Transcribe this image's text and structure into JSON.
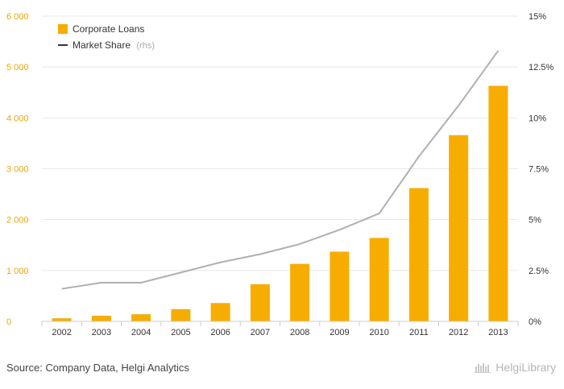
{
  "chart_data": {
    "type": "bar",
    "categories": [
      "2002",
      "2003",
      "2004",
      "2005",
      "2006",
      "2007",
      "2008",
      "2009",
      "2010",
      "2011",
      "2012",
      "2013"
    ],
    "series": [
      {
        "name": "Corporate Loans",
        "kind": "bar",
        "axis": "left",
        "color": "#f7ad00",
        "values": [
          60,
          110,
          140,
          240,
          360,
          730,
          1130,
          1370,
          1640,
          2620,
          3660,
          4630
        ]
      },
      {
        "name": "Market Share",
        "name_suffix": "(rhs)",
        "kind": "line",
        "axis": "right",
        "color": "#b0b0b0",
        "values": [
          1.6,
          1.9,
          1.9,
          2.4,
          2.9,
          3.3,
          3.8,
          4.5,
          5.3,
          8.1,
          10.6,
          13.3
        ]
      }
    ],
    "y_left": {
      "lim": [
        0,
        6000
      ],
      "ticks": [
        0,
        1000,
        2000,
        3000,
        4000,
        5000,
        6000
      ],
      "tick_labels": [
        "0",
        "1 000",
        "2 000",
        "3 000",
        "4 000",
        "5 000",
        "6 000"
      ]
    },
    "y_right": {
      "lim": [
        0,
        15
      ],
      "ticks": [
        0,
        2.5,
        5,
        7.5,
        10,
        12.5,
        15
      ],
      "tick_labels": [
        "0%",
        "2.5%",
        "5%",
        "7.5%",
        "10%",
        "12.5%",
        "15%"
      ]
    },
    "grid": true,
    "legend": "top-left"
  },
  "footer": {
    "source": "Source: Company Data, Helgi Analytics",
    "brand": "HelgiLibrary"
  },
  "colors": {
    "bar": "#f7ad00",
    "line": "#b0b0b0",
    "grid": "#e8e8e8",
    "left_axis_text": "#f0a500"
  }
}
